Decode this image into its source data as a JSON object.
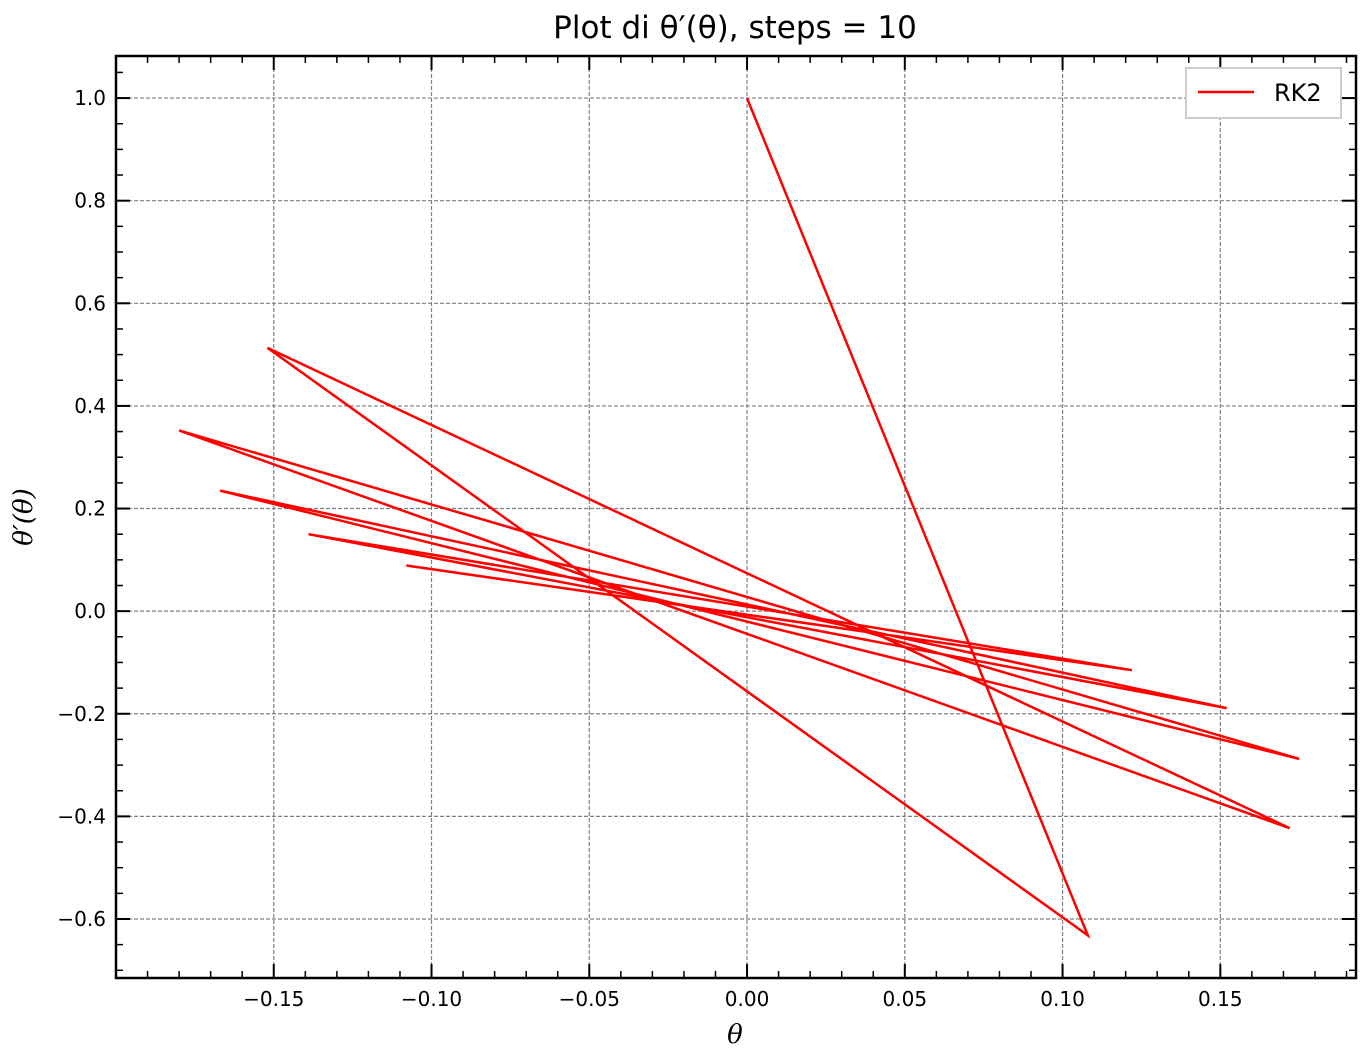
{
  "chart_data": {
    "type": "line",
    "title": "Plot di θ′(θ), steps = 10",
    "xlabel": "θ",
    "ylabel": "θ′(θ)",
    "xlim": [
      -0.2,
      0.193
    ],
    "ylim": [
      -0.715,
      1.082
    ],
    "xticks": [
      -0.15,
      -0.1,
      -0.05,
      0.0,
      0.05,
      0.1,
      0.15
    ],
    "xtick_labels": [
      "−0.15",
      "−0.10",
      "−0.05",
      "0.00",
      "0.05",
      "0.10",
      "0.15"
    ],
    "yticks": [
      -0.6,
      -0.4,
      -0.2,
      0.0,
      0.2,
      0.4,
      0.6,
      0.8,
      1.0
    ],
    "ytick_labels": [
      "−0.6",
      "−0.4",
      "−0.2",
      "0.0",
      "0.2",
      "0.4",
      "0.6",
      "0.8",
      "1.0"
    ],
    "grid": true,
    "legend_position": "top-right",
    "series": [
      {
        "name": "RK2",
        "color": "#ff0000",
        "x": [
          0.0,
          0.108,
          -0.152,
          0.172,
          -0.18,
          0.175,
          -0.167,
          0.152,
          -0.139,
          0.122,
          -0.108
        ],
        "y": [
          1.0,
          -0.632,
          0.513,
          -0.423,
          0.352,
          -0.288,
          0.235,
          -0.189,
          0.15,
          -0.115,
          0.089
        ]
      }
    ]
  }
}
